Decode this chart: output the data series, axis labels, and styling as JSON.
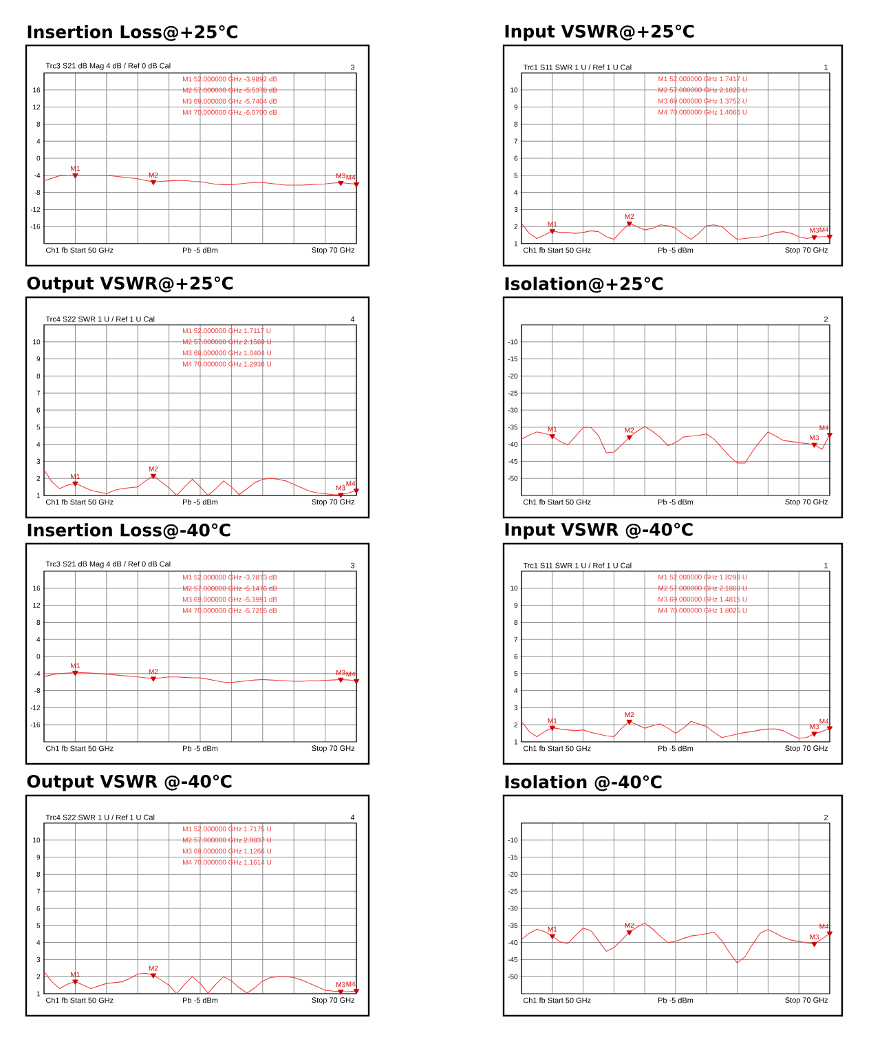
{
  "chart_data": [
    {
      "type": "line",
      "title": "Insertion Loss@+25℃",
      "subtitle": "Trc3 S21 dB Mag 4 dB / Ref 0 dB Cal",
      "categories": [
        null,
        null,
        null,
        null,
        null,
        null,
        null,
        null,
        null,
        null,
        null,
        null,
        null,
        null,
        null,
        null,
        null,
        null,
        null,
        null,
        null,
        null,
        null,
        null,
        null,
        null,
        null,
        null,
        null,
        null,
        null,
        null,
        null,
        null,
        null,
        null,
        null,
        null,
        null,
        null,
        null
      ],
      "ylim": [
        -20,
        20
      ],
      "yticks": [
        -16,
        -12,
        -8,
        -4,
        0,
        4,
        8,
        12,
        16
      ],
      "grid": true,
      "series": [
        {
          "color": "#f03c3c",
          "values": [
            -5.3,
            -4.7,
            -4.1,
            -4.0,
            -3.9892,
            -3.95,
            -3.95,
            -4.0,
            -4.0,
            -4.2,
            -4.4,
            -4.6,
            -4.8,
            -5.2,
            -5.5378,
            -5.4,
            -5.3,
            -5.2,
            -5.2,
            -5.4,
            -5.5,
            -5.8,
            -6.1,
            -6.2,
            -6.2,
            -6.0,
            -5.8,
            -5.7,
            -5.7,
            -5.9,
            -6.1,
            -6.3,
            -6.3,
            -6.3,
            -6.2,
            -6.1,
            -6.0,
            -5.8,
            -5.7404,
            -5.9,
            -6.07
          ]
        },
        {
          "type": "scatter",
          "marker": "triangle",
          "color": "#d00000",
          "values": [
            null,
            null,
            null,
            null,
            -3.9892,
            null,
            null,
            null,
            null,
            null,
            null,
            null,
            null,
            null,
            -5.5378,
            null,
            null,
            null,
            null,
            null,
            null,
            null,
            null,
            null,
            null,
            null,
            null,
            null,
            null,
            null,
            null,
            null,
            null,
            null,
            null,
            null,
            null,
            null,
            -5.7404,
            null,
            -6.07
          ],
          "value_labels": [
            null,
            null,
            null,
            null,
            "M1",
            null,
            null,
            null,
            null,
            null,
            null,
            null,
            null,
            null,
            "M2",
            null,
            null,
            null,
            null,
            null,
            null,
            null,
            null,
            null,
            null,
            null,
            null,
            null,
            null,
            null,
            null,
            null,
            null,
            null,
            null,
            null,
            null,
            null,
            "M3",
            null,
            "M4"
          ]
        }
      ],
      "annotations": [
        "3",
        "Ch1 fb Start 50 GHz",
        "Pb -5 dBm",
        "Stop 70 GHz",
        "M1 52.000000 GHz -3.9892 dB",
        "M2 57.000000 GHz -5.5378 dB",
        "M3 69.000000 GHz -5.7404 dB",
        "M4 70.000000 GHz -6.0700 dB"
      ]
    },
    {
      "type": "line",
      "title": "Input VSWR@+25℃",
      "subtitle": "Trc1 S11 SWR 1 U / Ref 1 U Cal",
      "categories": [
        null,
        null,
        null,
        null,
        null,
        null,
        null,
        null,
        null,
        null,
        null,
        null,
        null,
        null,
        null,
        null,
        null,
        null,
        null,
        null,
        null,
        null,
        null,
        null,
        null,
        null,
        null,
        null,
        null,
        null,
        null,
        null,
        null,
        null,
        null,
        null,
        null,
        null,
        null,
        null,
        null
      ],
      "ylim": [
        1,
        11
      ],
      "yticks": [
        1,
        2,
        3,
        4,
        5,
        6,
        7,
        8,
        9,
        10
      ],
      "grid": true,
      "series": [
        {
          "color": "#f03c3c",
          "values": [
            2.2,
            1.6,
            1.3,
            1.5,
            1.7417,
            1.65,
            1.65,
            1.6,
            1.65,
            1.75,
            1.7,
            1.4,
            1.25,
            1.75,
            2.1826,
            2.0,
            1.8,
            1.9,
            2.1,
            2.05,
            1.9,
            1.55,
            1.25,
            1.6,
            2.05,
            2.1,
            2.0,
            1.6,
            1.25,
            1.3,
            1.35,
            1.4,
            1.5,
            1.65,
            1.7,
            1.6,
            1.4,
            1.3,
            1.3752,
            1.4,
            1.4066
          ]
        },
        {
          "type": "scatter",
          "marker": "triangle",
          "color": "#d00000",
          "values": [
            null,
            null,
            null,
            null,
            1.7417,
            null,
            null,
            null,
            null,
            null,
            null,
            null,
            null,
            null,
            2.1826,
            null,
            null,
            null,
            null,
            null,
            null,
            null,
            null,
            null,
            null,
            null,
            null,
            null,
            null,
            null,
            null,
            null,
            null,
            null,
            null,
            null,
            null,
            null,
            1.3752,
            null,
            1.4066
          ],
          "value_labels": [
            null,
            null,
            null,
            null,
            "M1",
            null,
            null,
            null,
            null,
            null,
            null,
            null,
            null,
            null,
            "M2",
            null,
            null,
            null,
            null,
            null,
            null,
            null,
            null,
            null,
            null,
            null,
            null,
            null,
            null,
            null,
            null,
            null,
            null,
            null,
            null,
            null,
            null,
            null,
            "M3",
            null,
            "M4"
          ]
        }
      ],
      "annotations": [
        "1",
        "Ch1 fb Start 50 GHz",
        "Pb -5 dBm",
        "Stop 70 GHz",
        "M1 52.000000 GHz 1.7417 U",
        "M2 57.000000 GHz 2.1826 U",
        "M3 69.000000 GHz 1.3752 U",
        "M4 70.000000 GHz 1.4066 U"
      ]
    },
    {
      "type": "line",
      "title": "Output VSWR@+25℃",
      "subtitle": "Trc4 S22 SWR 1 U / Ref 1 U Cal",
      "categories": [
        null,
        null,
        null,
        null,
        null,
        null,
        null,
        null,
        null,
        null,
        null,
        null,
        null,
        null,
        null,
        null,
        null,
        null,
        null,
        null,
        null,
        null,
        null,
        null,
        null,
        null,
        null,
        null,
        null,
        null,
        null,
        null,
        null,
        null,
        null,
        null,
        null,
        null,
        null,
        null,
        null
      ],
      "ylim": [
        1,
        11
      ],
      "yticks": [
        1,
        2,
        3,
        4,
        5,
        6,
        7,
        8,
        9,
        10
      ],
      "grid": true,
      "series": [
        {
          "color": "#f03c3c",
          "values": [
            2.5,
            1.8,
            1.4,
            1.6,
            1.7117,
            1.5,
            1.3,
            1.2,
            1.1,
            1.3,
            1.4,
            1.45,
            1.5,
            1.85,
            2.1569,
            1.8,
            1.45,
            1.0,
            1.5,
            1.95,
            1.5,
            1.0,
            1.4,
            1.85,
            1.5,
            1.05,
            1.4,
            1.75,
            1.95,
            2.0,
            1.95,
            1.85,
            1.65,
            1.45,
            1.25,
            1.15,
            1.1,
            1.05,
            1.0404,
            1.15,
            1.2936
          ]
        },
        {
          "type": "scatter",
          "marker": "triangle",
          "color": "#d00000",
          "values": [
            null,
            null,
            null,
            null,
            1.7117,
            null,
            null,
            null,
            null,
            null,
            null,
            null,
            null,
            null,
            2.1569,
            null,
            null,
            null,
            null,
            null,
            null,
            null,
            null,
            null,
            null,
            null,
            null,
            null,
            null,
            null,
            null,
            null,
            null,
            null,
            null,
            null,
            null,
            null,
            1.0404,
            null,
            1.2936
          ],
          "value_labels": [
            null,
            null,
            null,
            null,
            "M1",
            null,
            null,
            null,
            null,
            null,
            null,
            null,
            null,
            null,
            "M2",
            null,
            null,
            null,
            null,
            null,
            null,
            null,
            null,
            null,
            null,
            null,
            null,
            null,
            null,
            null,
            null,
            null,
            null,
            null,
            null,
            null,
            null,
            null,
            "M3",
            null,
            "M4"
          ]
        }
      ],
      "annotations": [
        "4",
        "Ch1 fb Start 50 GHz",
        "Pb -5 dBm",
        "Stop 70 GHz",
        "M1 52.000000 GHz 1.7117 U",
        "M2 57.000000 GHz 2.1569 U",
        "M3 69.000000 GHz 1.0404 U",
        "M4 70.000000 GHz 1.2936 U"
      ]
    },
    {
      "type": "line",
      "title": "Isolation@+25℃",
      "categories": [
        null,
        null,
        null,
        null,
        null,
        null,
        null,
        null,
        null,
        null,
        null,
        null,
        null,
        null,
        null,
        null,
        null,
        null,
        null,
        null,
        null,
        null,
        null,
        null,
        null,
        null,
        null,
        null,
        null,
        null,
        null,
        null,
        null,
        null,
        null,
        null,
        null,
        null,
        null,
        null,
        null
      ],
      "ylim": [
        -55,
        -5
      ],
      "yticks": [
        -50,
        -45,
        -40,
        -35,
        -30,
        -25,
        -20,
        -15,
        -10
      ],
      "grid": true,
      "series": [
        {
          "color": "#f03c3c",
          "values": [
            -38.5,
            -37.3,
            -36.4,
            -36.8,
            -37.6,
            -39.2,
            -40.2,
            -37.7,
            -35.1,
            -35.0,
            -37.5,
            -42.5,
            -42.3,
            -40.2,
            -37.9,
            -36.2,
            -34.8,
            -36.2,
            -38.0,
            -40.4,
            -39.5,
            -37.9,
            -37.6,
            -37.4,
            -37.0,
            -38.5,
            -41.0,
            -43.5,
            -45.5,
            -45.5,
            -42.0,
            -39.0,
            -36.4,
            -37.6,
            -38.9,
            -39.2,
            -39.5,
            -39.8,
            -40.1,
            -41.5,
            -37.2
          ]
        },
        {
          "type": "scatter",
          "marker": "triangle",
          "color": "#d00000",
          "values": [
            null,
            null,
            null,
            null,
            -37.6,
            null,
            null,
            null,
            null,
            null,
            null,
            null,
            null,
            null,
            -37.9,
            null,
            null,
            null,
            null,
            null,
            null,
            null,
            null,
            null,
            null,
            null,
            null,
            null,
            null,
            null,
            null,
            null,
            null,
            null,
            null,
            null,
            null,
            null,
            -40.1,
            null,
            -37.2
          ],
          "value_labels": [
            null,
            null,
            null,
            null,
            "M1",
            null,
            null,
            null,
            null,
            null,
            null,
            null,
            null,
            null,
            "M2",
            null,
            null,
            null,
            null,
            null,
            null,
            null,
            null,
            null,
            null,
            null,
            null,
            null,
            null,
            null,
            null,
            null,
            null,
            null,
            null,
            null,
            null,
            null,
            "M3",
            null,
            "M4"
          ]
        }
      ],
      "annotations": [
        "2",
        "Ch1 fb Start 50 GHz",
        "Pb -5 dBm",
        "Stop 70 GHz"
      ]
    },
    {
      "type": "line",
      "title": "Insertion Loss@-40℃",
      "subtitle": "Trc3 S21 dB Mag 4 dB / Ref 0 dB Cal",
      "categories": [
        null,
        null,
        null,
        null,
        null,
        null,
        null,
        null,
        null,
        null,
        null,
        null,
        null,
        null,
        null,
        null,
        null,
        null,
        null,
        null,
        null,
        null,
        null,
        null,
        null,
        null,
        null,
        null,
        null,
        null,
        null,
        null,
        null,
        null,
        null,
        null,
        null,
        null,
        null,
        null,
        null
      ],
      "ylim": [
        -20,
        20
      ],
      "yticks": [
        -16,
        -12,
        -8,
        -4,
        0,
        4,
        8,
        12,
        16
      ],
      "grid": true,
      "series": [
        {
          "color": "#f03c3c",
          "values": [
            -4.7,
            -4.3,
            -4.0,
            -3.9,
            -3.7873,
            -3.8,
            -3.9,
            -4.0,
            -4.2,
            -4.3,
            -4.5,
            -4.6,
            -4.8,
            -5.0,
            -5.1476,
            -5.0,
            -4.8,
            -4.8,
            -4.9,
            -5.0,
            -5.0,
            -5.3,
            -5.7,
            -6.0,
            -6.1,
            -5.9,
            -5.7,
            -5.5,
            -5.4,
            -5.5,
            -5.6,
            -5.7,
            -5.8,
            -5.8,
            -5.7,
            -5.7,
            -5.6,
            -5.5,
            -5.3991,
            -5.5,
            -5.7255
          ]
        },
        {
          "type": "scatter",
          "marker": "triangle",
          "color": "#d00000",
          "values": [
            null,
            null,
            null,
            null,
            -3.7873,
            null,
            null,
            null,
            null,
            null,
            null,
            null,
            null,
            null,
            -5.1476,
            null,
            null,
            null,
            null,
            null,
            null,
            null,
            null,
            null,
            null,
            null,
            null,
            null,
            null,
            null,
            null,
            null,
            null,
            null,
            null,
            null,
            null,
            null,
            -5.3991,
            null,
            -5.7255
          ],
          "value_labels": [
            null,
            null,
            null,
            null,
            "M1",
            null,
            null,
            null,
            null,
            null,
            null,
            null,
            null,
            null,
            "M2",
            null,
            null,
            null,
            null,
            null,
            null,
            null,
            null,
            null,
            null,
            null,
            null,
            null,
            null,
            null,
            null,
            null,
            null,
            null,
            null,
            null,
            null,
            null,
            "M3",
            null,
            "M4"
          ]
        }
      ],
      "annotations": [
        "3",
        "Ch1 fb Start 50 GHz",
        "Pb -5 dBm",
        "Stop 70 GHz",
        "M1 52.000000 GHz -3.7873 dB",
        "M2 57.000000 GHz -5.1476 dB",
        "M3 69.000000 GHz -5.3991 dB",
        "M4 70.000000 GHz -5.7255 dB"
      ]
    },
    {
      "type": "line",
      "title": "Input VSWR @-40℃",
      "subtitle": "Trc1 S11 SWR 1 U / Ref 1 U Cal",
      "categories": [
        null,
        null,
        null,
        null,
        null,
        null,
        null,
        null,
        null,
        null,
        null,
        null,
        null,
        null,
        null,
        null,
        null,
        null,
        null,
        null,
        null,
        null,
        null,
        null,
        null,
        null,
        null,
        null,
        null,
        null,
        null,
        null,
        null,
        null,
        null,
        null,
        null,
        null,
        null,
        null,
        null
      ],
      "ylim": [
        1,
        11
      ],
      "yticks": [
        1,
        2,
        3,
        4,
        5,
        6,
        7,
        8,
        9,
        10
      ],
      "grid": true,
      "series": [
        {
          "color": "#f03c3c",
          "values": [
            2.2,
            1.6,
            1.3,
            1.6,
            1.8298,
            1.75,
            1.7,
            1.65,
            1.7,
            1.55,
            1.45,
            1.35,
            1.3,
            1.8,
            2.1868,
            2.0,
            1.8,
            1.95,
            2.05,
            1.8,
            1.5,
            1.8,
            2.2,
            2.05,
            1.9,
            1.55,
            1.25,
            1.35,
            1.45,
            1.55,
            1.6,
            1.7,
            1.75,
            1.75,
            1.65,
            1.4,
            1.2,
            1.25,
            1.4815,
            1.6,
            1.8025
          ]
        },
        {
          "type": "scatter",
          "marker": "triangle",
          "color": "#d00000",
          "values": [
            null,
            null,
            null,
            null,
            1.8298,
            null,
            null,
            null,
            null,
            null,
            null,
            null,
            null,
            null,
            2.1868,
            null,
            null,
            null,
            null,
            null,
            null,
            null,
            null,
            null,
            null,
            null,
            null,
            null,
            null,
            null,
            null,
            null,
            null,
            null,
            null,
            null,
            null,
            null,
            1.4815,
            null,
            1.8025
          ],
          "value_labels": [
            null,
            null,
            null,
            null,
            "M1",
            null,
            null,
            null,
            null,
            null,
            null,
            null,
            null,
            null,
            "M2",
            null,
            null,
            null,
            null,
            null,
            null,
            null,
            null,
            null,
            null,
            null,
            null,
            null,
            null,
            null,
            null,
            null,
            null,
            null,
            null,
            null,
            null,
            null,
            "M3",
            null,
            "M4"
          ]
        }
      ],
      "annotations": [
        "1",
        "Ch1 fb Start 50 GHz",
        "Pb -5 dBm",
        "Stop 70 GHz",
        "M1 52.000000 GHz 1.8298 U",
        "M2 57.000000 GHz 2.1868 U",
        "M3 69.000000 GHz 1.4815 U",
        "M4 70.000000 GHz 1.8025 U"
      ]
    },
    {
      "type": "line",
      "title": "Output VSWR @-40℃",
      "subtitle": "Trc4 S22 SWR 1 U / Ref 1 U Cal",
      "categories": [
        null,
        null,
        null,
        null,
        null,
        null,
        null,
        null,
        null,
        null,
        null,
        null,
        null,
        null,
        null,
        null,
        null,
        null,
        null,
        null,
        null,
        null,
        null,
        null,
        null,
        null,
        null,
        null,
        null,
        null,
        null,
        null,
        null,
        null,
        null,
        null,
        null,
        null,
        null,
        null,
        null
      ],
      "ylim": [
        1,
        11
      ],
      "yticks": [
        1,
        2,
        3,
        4,
        5,
        6,
        7,
        8,
        9,
        10
      ],
      "grid": true,
      "series": [
        {
          "color": "#f03c3c",
          "values": [
            2.3,
            1.7,
            1.3,
            1.55,
            1.7175,
            1.5,
            1.3,
            1.45,
            1.6,
            1.65,
            1.7,
            1.9,
            2.15,
            2.2,
            2.0837,
            1.8,
            1.5,
            1.0,
            1.55,
            2.0,
            1.6,
            1.03,
            1.55,
            2.0,
            1.75,
            1.35,
            1.03,
            1.35,
            1.75,
            1.95,
            2.0,
            2.0,
            1.95,
            1.8,
            1.6,
            1.4,
            1.2,
            1.15,
            1.1266,
            1.12,
            1.1614
          ]
        },
        {
          "type": "scatter",
          "marker": "triangle",
          "color": "#d00000",
          "values": [
            null,
            null,
            null,
            null,
            1.7175,
            null,
            null,
            null,
            null,
            null,
            null,
            null,
            null,
            null,
            2.0837,
            null,
            null,
            null,
            null,
            null,
            null,
            null,
            null,
            null,
            null,
            null,
            null,
            null,
            null,
            null,
            null,
            null,
            null,
            null,
            null,
            null,
            null,
            null,
            1.1266,
            null,
            1.1614
          ],
          "value_labels": [
            null,
            null,
            null,
            null,
            "M1",
            null,
            null,
            null,
            null,
            null,
            null,
            null,
            null,
            null,
            "M2",
            null,
            null,
            null,
            null,
            null,
            null,
            null,
            null,
            null,
            null,
            null,
            null,
            null,
            null,
            null,
            null,
            null,
            null,
            null,
            null,
            null,
            null,
            null,
            "M3",
            null,
            "M4"
          ]
        }
      ],
      "annotations": [
        "4",
        "Ch1 fb Start 50 GHz",
        "Pb -5 dBm",
        "Stop 70 GHz",
        "M1 52.000000 GHz 1.7175 U",
        "M2 57.000000 GHz 2.0837 U",
        "M3 69.000000 GHz 1.1266 U",
        "M4 70.000000 GHz 1.1614 U"
      ]
    },
    {
      "type": "line",
      "title": "Isolation @-40℃",
      "categories": [
        null,
        null,
        null,
        null,
        null,
        null,
        null,
        null,
        null,
        null,
        null,
        null,
        null,
        null,
        null,
        null,
        null,
        null,
        null,
        null,
        null,
        null,
        null,
        null,
        null,
        null,
        null,
        null,
        null,
        null,
        null,
        null,
        null,
        null,
        null,
        null,
        null,
        null,
        null,
        null,
        null
      ],
      "ylim": [
        -55,
        -5
      ],
      "yticks": [
        -50,
        -45,
        -40,
        -35,
        -30,
        -25,
        -20,
        -15,
        -10
      ],
      "grid": true,
      "series": [
        {
          "color": "#f03c3c",
          "values": [
            -39.1,
            -37.3,
            -36.1,
            -36.8,
            -38.1,
            -39.8,
            -40.3,
            -38.0,
            -35.8,
            -36.5,
            -39.5,
            -42.6,
            -41.5,
            -39.3,
            -37.0,
            -35.5,
            -34.3,
            -36.0,
            -38.2,
            -40.0,
            -39.7,
            -38.8,
            -38.1,
            -37.8,
            -37.4,
            -37.0,
            -39.5,
            -43.0,
            -46.0,
            -44.2,
            -40.5,
            -37.2,
            -36.2,
            -37.3,
            -38.5,
            -39.3,
            -39.7,
            -40.1,
            -40.4,
            -39.0,
            -37.3
          ]
        },
        {
          "type": "scatter",
          "marker": "triangle",
          "color": "#d00000",
          "values": [
            null,
            null,
            null,
            null,
            -38.1,
            null,
            null,
            null,
            null,
            null,
            null,
            null,
            null,
            null,
            -37.0,
            null,
            null,
            null,
            null,
            null,
            null,
            null,
            null,
            null,
            null,
            null,
            null,
            null,
            null,
            null,
            null,
            null,
            null,
            null,
            null,
            null,
            null,
            null,
            -40.4,
            null,
            -37.3
          ],
          "value_labels": [
            null,
            null,
            null,
            null,
            "M1",
            null,
            null,
            null,
            null,
            null,
            null,
            null,
            null,
            null,
            "M2",
            null,
            null,
            null,
            null,
            null,
            null,
            null,
            null,
            null,
            null,
            null,
            null,
            null,
            null,
            null,
            null,
            null,
            null,
            null,
            null,
            null,
            null,
            null,
            "M3",
            null,
            "M4"
          ]
        }
      ],
      "annotations": [
        "2",
        "Ch1 fb Start 50 GHz",
        "Pb -5 dBm",
        "Stop 70 GHz"
      ]
    }
  ]
}
